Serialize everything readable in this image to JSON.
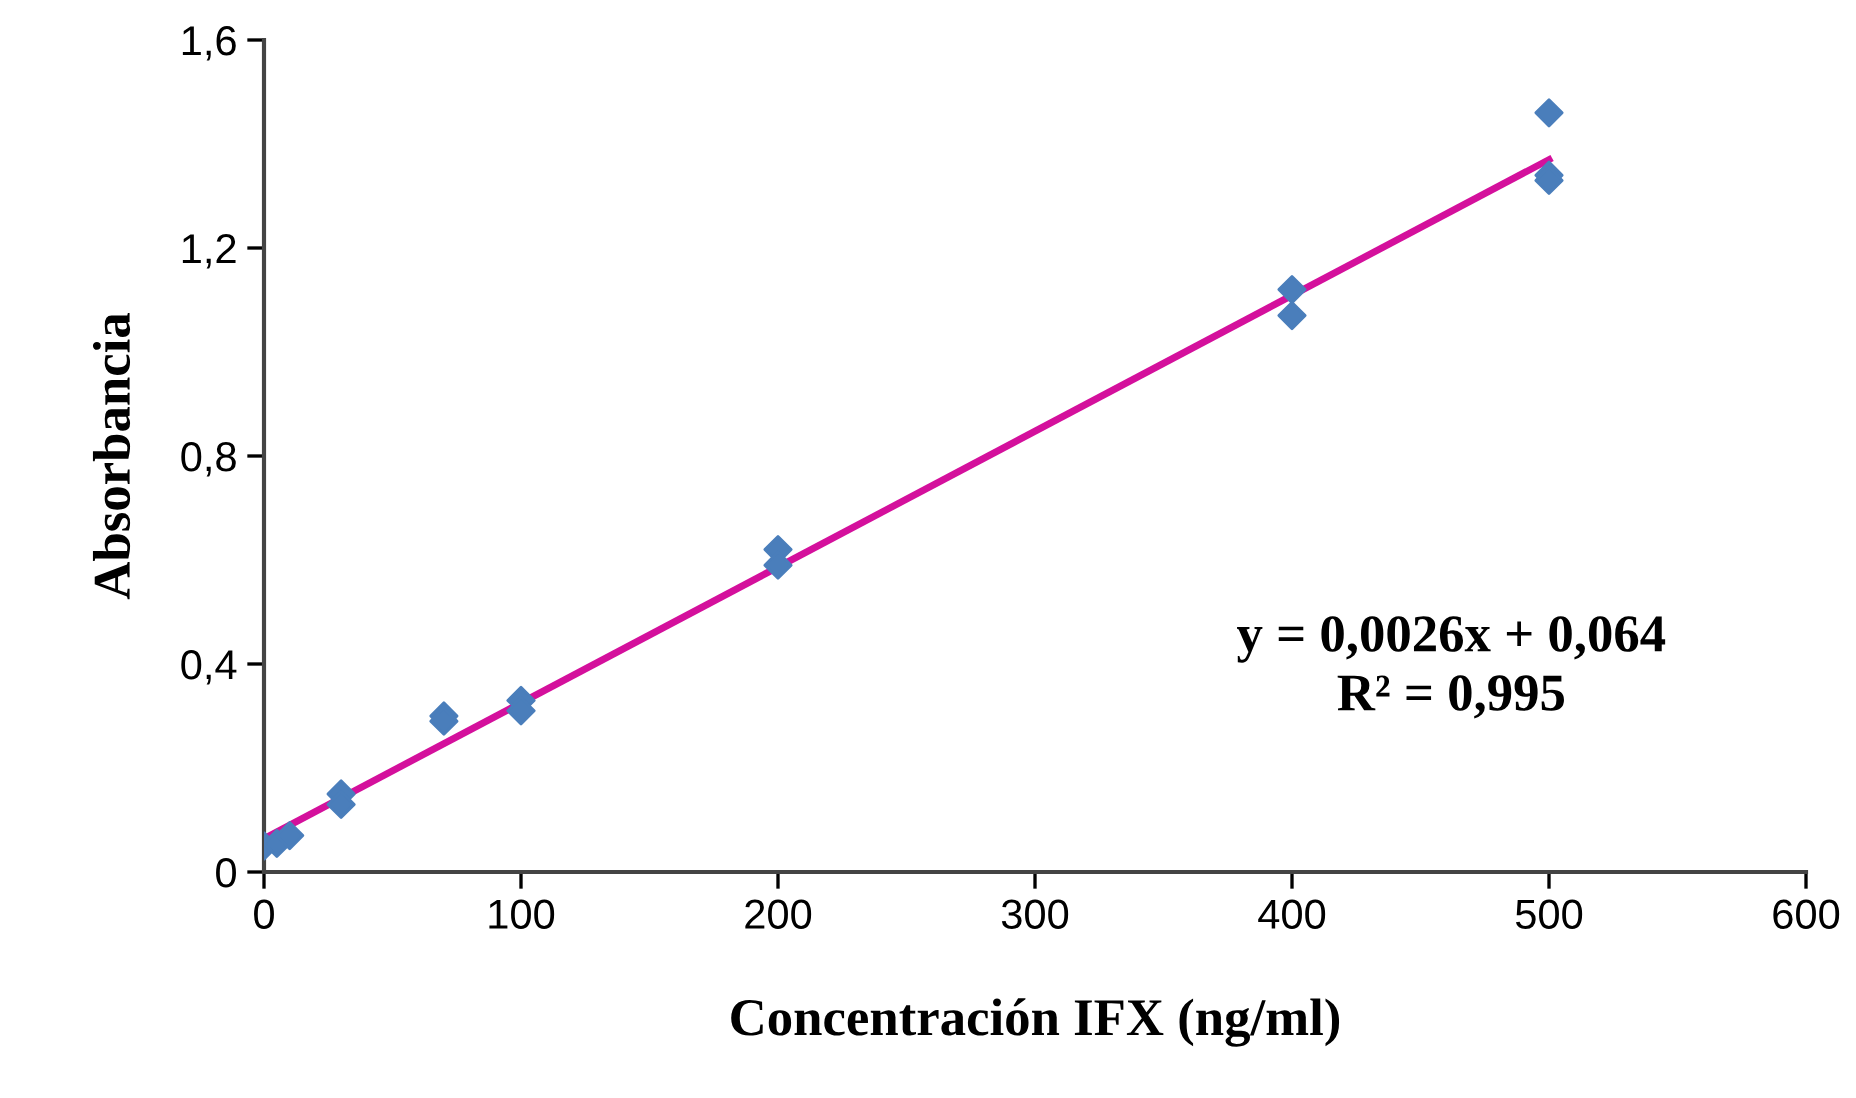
{
  "chart_data": {
    "type": "scatter",
    "xlabel": "Concentración IFX (ng/ml)",
    "ylabel": "Absorbancia",
    "xlim": [
      0,
      600
    ],
    "xticks": [
      0,
      100,
      200,
      300,
      400,
      500,
      600
    ],
    "ylim": [
      0,
      1.6
    ],
    "yticks": [
      0,
      {
        "value": 0.4,
        "label": "0,4"
      },
      {
        "value": 0.8,
        "label": "0,8"
      },
      {
        "value": 1.2,
        "label": "1,2"
      },
      {
        "value": 1.6,
        "label": "1,6"
      }
    ],
    "grid": false,
    "legend": false,
    "series": [
      {
        "marker": "diamond",
        "color": "#4a7ebb",
        "x": [
          0,
          5,
          10,
          30,
          30,
          70,
          70,
          100,
          100,
          200,
          200,
          400,
          400,
          500,
          500,
          500
        ],
        "values": [
          0.05,
          0.055,
          0.07,
          0.15,
          0.13,
          0.3,
          0.29,
          0.33,
          0.31,
          0.62,
          0.59,
          1.12,
          1.07,
          1.46,
          1.34,
          1.33
        ]
      },
      {
        "type": "line",
        "color": "#d4109c",
        "x": [
          0,
          500
        ],
        "values": [
          0.064,
          1.37
        ],
        "line_style": "solid",
        "marker": "none"
      }
    ],
    "annotations": [
      "y = 0,0026x + 0,064\nR² = 0,995"
    ]
  }
}
